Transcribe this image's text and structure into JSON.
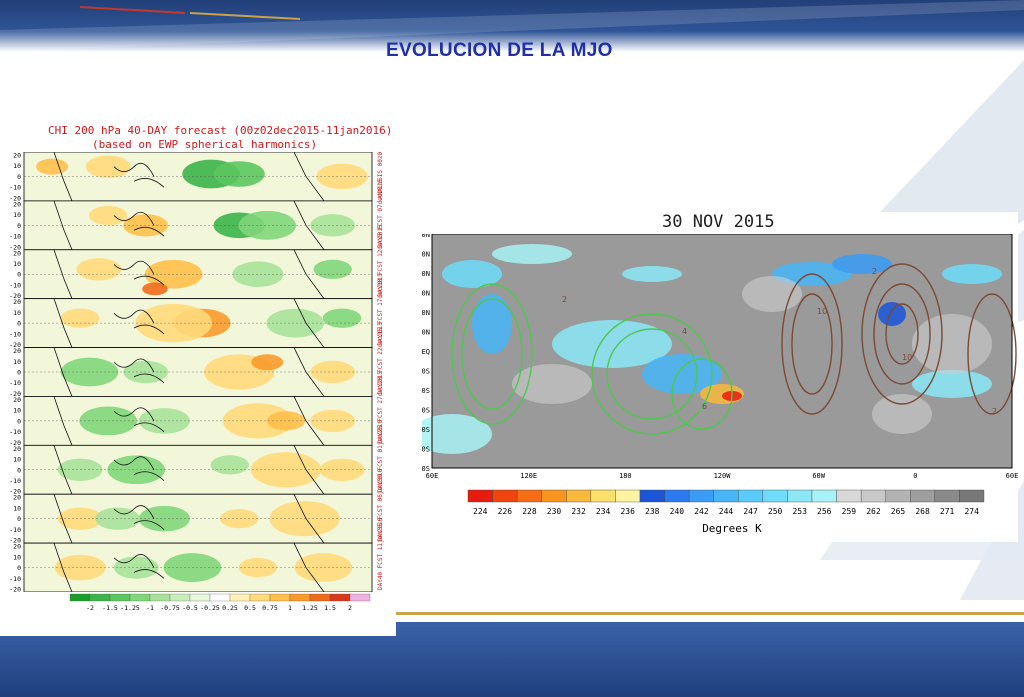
{
  "slide": {
    "title": "EVOLUCION DE LA MJO"
  },
  "left_figure": {
    "title": "CHI 200 hPa 40-DAY forecast (00z02dec2015-11jan2016)",
    "subtitle": "(based on EWP spherical harmonics)",
    "y_ticks": [
      "20",
      "10",
      "0",
      "-10",
      "-20"
    ],
    "panel_labels": [
      "ANALYSIS 00z02dec2015",
      "DAY5 FCST 07dec2015",
      "DAY10 FCST 12dec2015",
      "DAY15 FCST 17dec2015",
      "DAY20 FCST 22dec2015",
      "DAY25 FCST 27dec2015",
      "DAY30 FCST 01jan2016",
      "DAY35 FCST 06jan2016",
      "DAY40 FCST 11jan2016"
    ],
    "colorbar": {
      "labels": [
        "-2",
        "-1.5",
        "-1.25",
        "-1",
        "-0.75",
        "-0.5",
        "-0.25",
        "0.25",
        "0.5",
        "0.75",
        "1",
        "1.25",
        "1.5",
        "2"
      ],
      "colors": [
        "#1a9e2a",
        "#3cb44a",
        "#5cc65e",
        "#82d67a",
        "#a8e29a",
        "#c8eeb8",
        "#e6f7dc",
        "#ffffff",
        "#fff1b8",
        "#ffd97a",
        "#ffbf4a",
        "#f99a2a",
        "#ef6a1a",
        "#d9381a",
        "#f0b0e0"
      ]
    }
  },
  "right_figure": {
    "title": "30 NOV 2015",
    "lat_labels": [
      "60N",
      "50N",
      "40N",
      "30N",
      "20N",
      "10N",
      "EQ",
      "10S",
      "20S",
      "30S",
      "40S",
      "50S",
      "60S"
    ],
    "lon_labels": [
      "60E",
      "120E",
      "180",
      "120W",
      "60W",
      "0",
      "60E"
    ],
    "colorbar": {
      "labels": [
        "224",
        "226",
        "228",
        "230",
        "232",
        "234",
        "236",
        "238",
        "240",
        "242",
        "244",
        "247",
        "250",
        "253",
        "256",
        "259",
        "262",
        "265",
        "268",
        "271",
        "274"
      ],
      "colors": [
        "#e81b0f",
        "#f0440d",
        "#f56e15",
        "#f7951f",
        "#f9b93a",
        "#fbe06a",
        "#fff3a0",
        "#1b55d8",
        "#2c7af0",
        "#3a9cf5",
        "#46b6f8",
        "#5acbfa",
        "#6fdcf9",
        "#8ae8f7",
        "#a7f2f6",
        "#d8d8d8",
        "#c8c8c8",
        "#b3b3b3",
        "#9e9e9e",
        "#8a8a8a",
        "#777777"
      ],
      "xlabel": "Degrees K"
    },
    "contour_labels": [
      "-2",
      "2",
      "4",
      "6",
      "8",
      "10"
    ]
  }
}
